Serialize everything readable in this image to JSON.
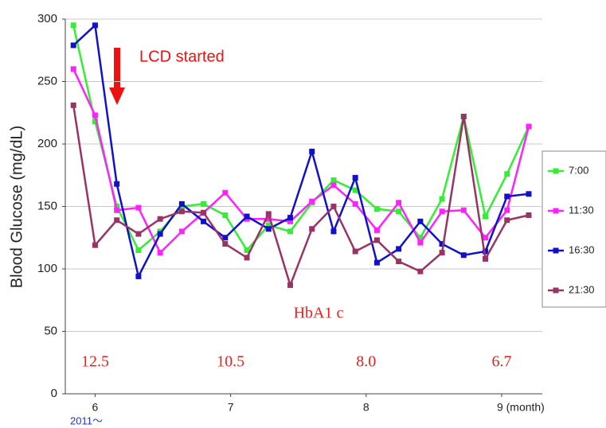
{
  "chart_data": {
    "type": "line",
    "y_label": "Blood Glucose (mg/dL)",
    "x_note": "2011～",
    "annotation": "LCD started",
    "hba1c": {
      "title": "HbA1 c",
      "values": [
        12.5,
        10.5,
        8.0,
        6.7
      ],
      "value_labels": [
        "12.5",
        "10.5",
        "8.0",
        "6.7"
      ]
    },
    "x": [
      5.84,
      6.0,
      6.16,
      6.32,
      6.48,
      6.64,
      6.8,
      6.96,
      7.12,
      7.28,
      7.44,
      7.6,
      7.76,
      7.92,
      8.08,
      8.24,
      8.4,
      8.56,
      8.72,
      8.88,
      9.04,
      9.2
    ],
    "series": [
      {
        "name": "7:00",
        "color": "#33ee33",
        "values": [
          295,
          218,
          150,
          115,
          130,
          150,
          152,
          143,
          115,
          135,
          130,
          153,
          171,
          163,
          148,
          146,
          125,
          156,
          222,
          142,
          176,
          214
        ]
      },
      {
        "name": "11:30",
        "color": "#ff22ff",
        "values": [
          260,
          223,
          147,
          149,
          113,
          130,
          145,
          161,
          140,
          140,
          138,
          154,
          167,
          152,
          131,
          153,
          121,
          146,
          147,
          125,
          147,
          214
        ]
      },
      {
        "name": "16:30",
        "color": "#1111cc",
        "values": [
          279,
          295,
          168,
          94,
          128,
          152,
          138,
          125,
          142,
          132,
          141,
          194,
          130,
          173,
          105,
          116,
          138,
          120,
          111,
          114,
          158,
          160
        ]
      },
      {
        "name": "21:30",
        "color": "#993366",
        "values": [
          231,
          119,
          139,
          128,
          140,
          146,
          145,
          120,
          109,
          144,
          87,
          132,
          150,
          114,
          123,
          106,
          98,
          113,
          222,
          108,
          139,
          143
        ]
      }
    ],
    "xlim": [
      5.78,
      9.3
    ],
    "xticks": [
      6,
      7,
      8,
      {
        "value": 9,
        "label": "9 (month)"
      }
    ],
    "ylim": [
      0,
      300
    ],
    "yticks": [
      0,
      50,
      100,
      150,
      200,
      250,
      300
    ],
    "grid": true
  }
}
